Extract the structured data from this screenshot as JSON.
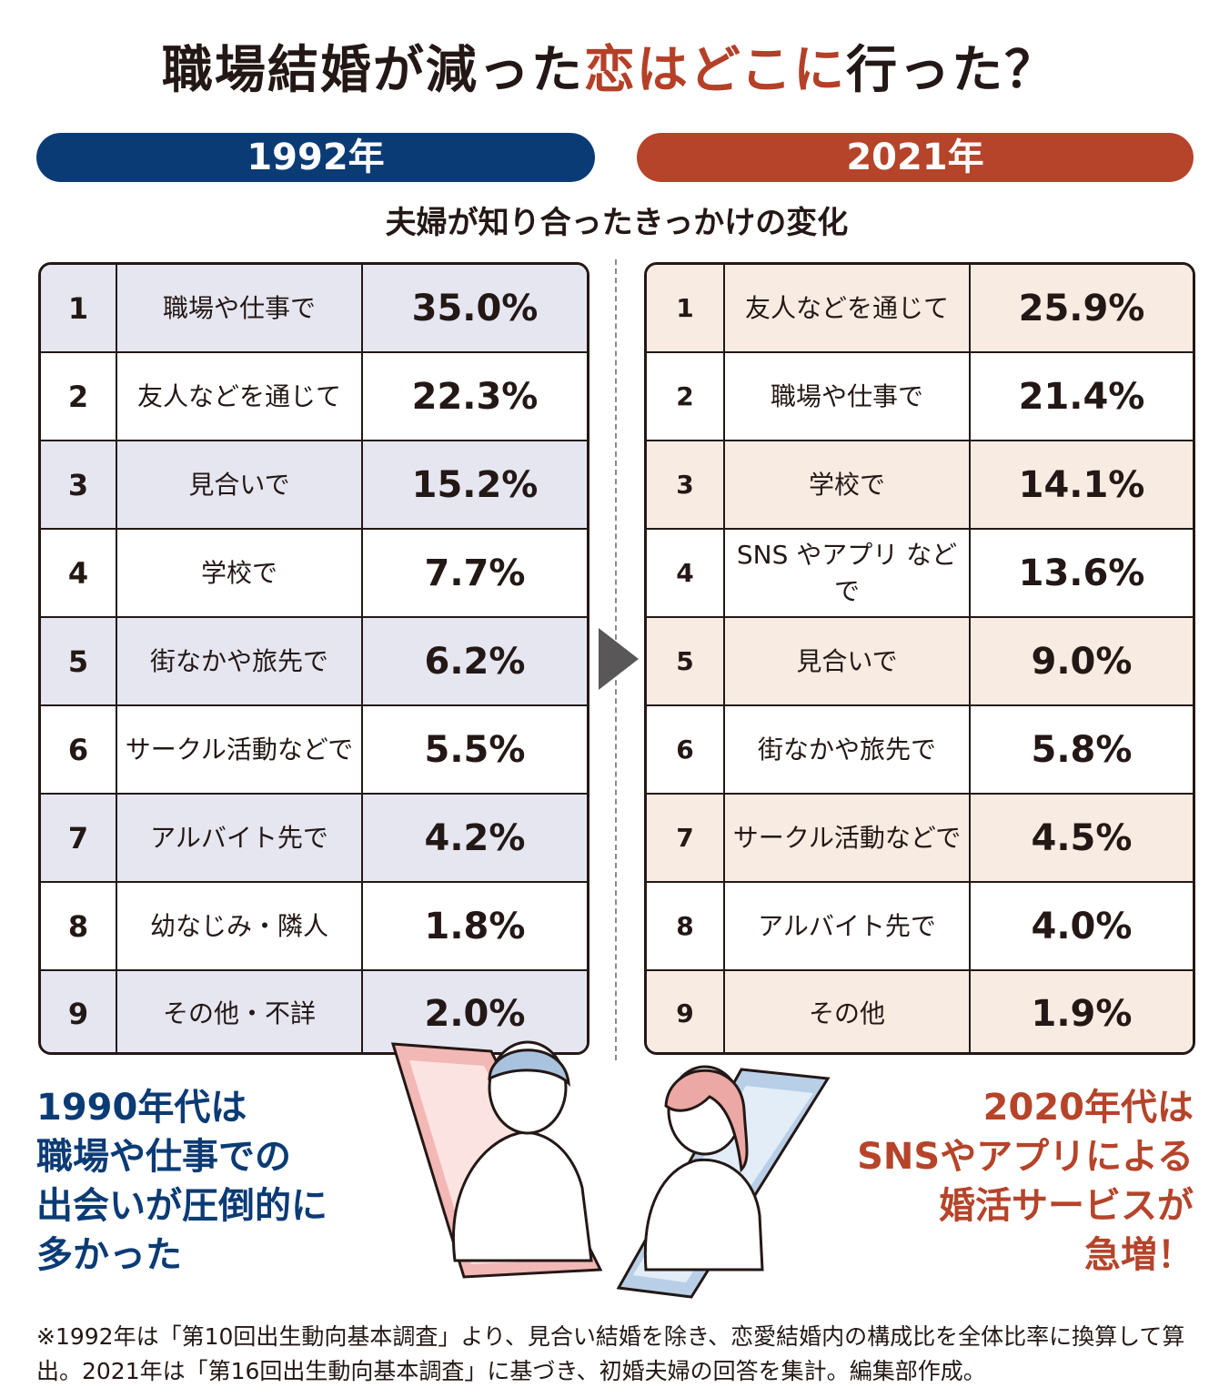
{
  "title": {
    "part1": "職場結婚が減った",
    "accent": "恋はどこに",
    "part2": "行った？"
  },
  "left_year": "1992年",
  "right_year": "2021年",
  "subtitle": "夫婦が知り合ったきっかけの変化",
  "table_1992": [
    {
      "rank": "1",
      "label": "職場や仕事で",
      "value": "35.0%"
    },
    {
      "rank": "2",
      "label": "友人などを通じて",
      "value": "22.3%"
    },
    {
      "rank": "3",
      "label": "見合いで",
      "value": "15.2%"
    },
    {
      "rank": "4",
      "label": "学校で",
      "value": "7.7%"
    },
    {
      "rank": "5",
      "label": "街なかや旅先で",
      "value": "6.2%"
    },
    {
      "rank": "6",
      "label": "サークル活動などで",
      "value": "5.5%"
    },
    {
      "rank": "7",
      "label": "アルバイト先で",
      "value": "4.2%"
    },
    {
      "rank": "8",
      "label": "幼なじみ・隣人",
      "value": "1.8%"
    },
    {
      "rank": "9",
      "label": "その他・不詳",
      "value": "2.0%"
    }
  ],
  "table_2021": [
    {
      "rank": "1",
      "label": "友人などを通じて",
      "value": "25.9%"
    },
    {
      "rank": "2",
      "label": "職場や仕事で",
      "value": "21.4%"
    },
    {
      "rank": "3",
      "label": "学校で",
      "value": "14.1%"
    },
    {
      "rank": "4",
      "label": "SNS やアプリ などで",
      "value": "13.6%"
    },
    {
      "rank": "5",
      "label": "見合いで",
      "value": "9.0%"
    },
    {
      "rank": "6",
      "label": "街なかや旅先で",
      "value": "5.8%"
    },
    {
      "rank": "7",
      "label": "サークル活動などで",
      "value": "4.5%"
    },
    {
      "rank": "8",
      "label": "アルバイト先で",
      "value": "4.0%"
    },
    {
      "rank": "9",
      "label": "その他",
      "value": "1.9%"
    }
  ],
  "caption_left": [
    "1990年代は",
    "職場や仕事での",
    "出会いが圧倒的に",
    "多かった"
  ],
  "caption_right": [
    "2020年代は",
    "SNSやアプリによる",
    "婚活サービスが",
    "急増！"
  ],
  "footnote": "※1992年は「第10回出生動向基本調査」より、見合い結婚を除き、恋愛結婚内の構成比を全体比率に換算して算出。2021年は「第16回出生動向基本調査」に基づき、初婚夫婦の回答を集計。編集部作成。",
  "colors": {
    "navy": "#0b3b75",
    "rust": "#b5442a",
    "left_stripe": "#e6e6f1",
    "right_stripe": "#f8ebe2"
  },
  "chart_data": [
    {
      "type": "table",
      "title": "1992年",
      "columns": [
        "rank",
        "label",
        "value"
      ],
      "categories": [
        "職場や仕事で",
        "友人などを通じて",
        "見合いで",
        "学校で",
        "街なかや旅先で",
        "サークル活動などで",
        "アルバイト先で",
        "幼なじみ・隣人",
        "その他・不詳"
      ],
      "values": [
        35.0,
        22.3,
        15.2,
        7.7,
        6.2,
        5.5,
        4.2,
        1.8,
        2.0
      ]
    },
    {
      "type": "table",
      "title": "2021年",
      "columns": [
        "rank",
        "label",
        "value"
      ],
      "categories": [
        "友人などを通じて",
        "職場や仕事で",
        "学校で",
        "SNS やアプリ などで",
        "見合いで",
        "街なかや旅先で",
        "サークル活動などで",
        "アルバイト先で",
        "その他"
      ],
      "values": [
        25.9,
        21.4,
        14.1,
        13.6,
        9.0,
        5.8,
        4.5,
        4.0,
        1.9
      ]
    }
  ]
}
